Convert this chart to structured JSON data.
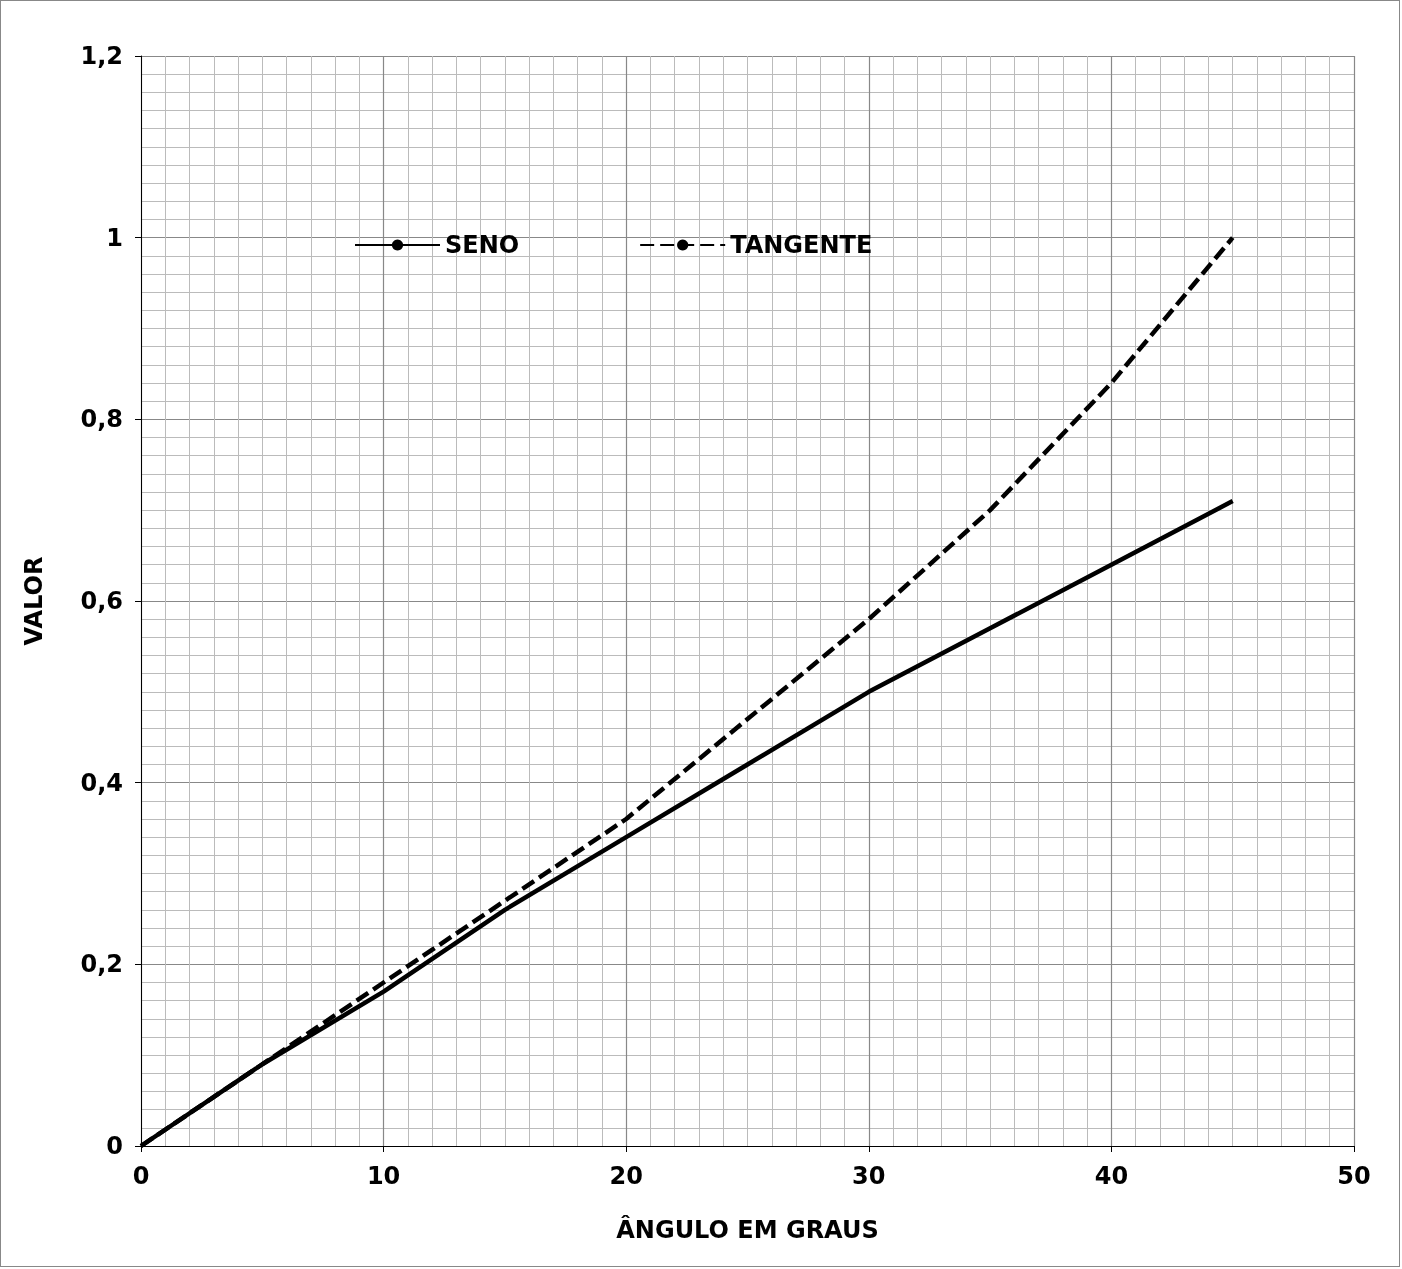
{
  "chart_data": {
    "type": "line",
    "xlabel": "ÂNGULO EM GRAUS",
    "ylabel": "VALOR",
    "x": [
      0,
      5,
      10,
      15,
      20,
      25,
      30,
      35,
      40,
      45
    ],
    "series": [
      {
        "name": "SENO",
        "color": "#000000",
        "line_style": "solid",
        "values": [
          0,
          0.09,
          0.17,
          0.26,
          0.34,
          0.42,
          0.5,
          0.57,
          0.64,
          0.71
        ]
      },
      {
        "name": "TANGENTE",
        "color": "#000000",
        "line_style": "dashed",
        "values": [
          0,
          0.09,
          0.18,
          0.27,
          0.36,
          0.47,
          0.58,
          0.7,
          0.84,
          1
        ]
      }
    ],
    "xlim": [
      0,
      50
    ],
    "xticks": [
      0,
      10,
      20,
      30,
      40,
      50
    ],
    "ylim": [
      0,
      1.2
    ],
    "yticks": [
      0,
      {
        "value": 0.2,
        "label": "0,2"
      },
      {
        "value": 0.4,
        "label": "0,4"
      },
      {
        "value": 0.6,
        "label": "0,6"
      },
      {
        "value": 0.8,
        "label": "0,8"
      },
      1,
      {
        "value": 1.2,
        "label": "1,2"
      }
    ],
    "grid": true,
    "legend": "top",
    "marker": "none"
  }
}
